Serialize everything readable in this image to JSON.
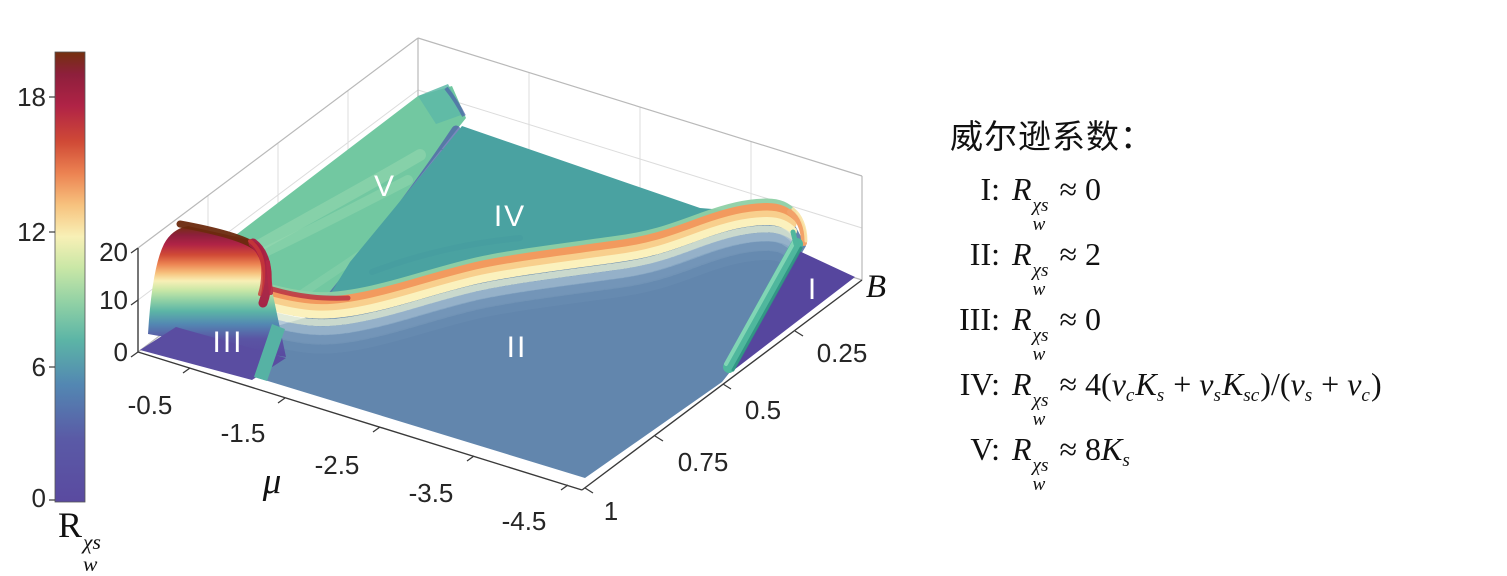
{
  "colorbar": {
    "tick_labels": [
      "18",
      "12",
      "6",
      "0"
    ],
    "label_segments": [
      {
        "t": "R",
        "sup": "χs",
        "sub": "w",
        "it": true
      }
    ]
  },
  "plot": {
    "x_axis": {
      "name": "μ",
      "tick_labels": [
        "-0.5",
        "-1.5",
        "-2.5",
        "-3.5",
        "-4.5"
      ]
    },
    "y_axis": {
      "name": "B",
      "tick_labels": [
        "0.25",
        "0.5",
        "0.75",
        "1"
      ]
    },
    "z_axis": {
      "tick_labels": [
        "0",
        "10",
        "20"
      ]
    },
    "regions": {
      "r1": "I",
      "r2": "II",
      "r3": "III",
      "r4": "IV",
      "r5": "V"
    }
  },
  "legend": {
    "title": "威尔逊系数：",
    "items": [
      {
        "numeral": "I:",
        "formula": [
          {
            "t": "R",
            "sup": "χs",
            "sub": "w",
            "it": true
          },
          {
            "t": " ≈ 0"
          }
        ]
      },
      {
        "numeral": "II:",
        "formula": [
          {
            "t": "R",
            "sup": "χs",
            "sub": "w",
            "it": true
          },
          {
            "t": " ≈ 2"
          }
        ]
      },
      {
        "numeral": "III:",
        "formula": [
          {
            "t": "R",
            "sup": "χs",
            "sub": "w",
            "it": true
          },
          {
            "t": " ≈ 0"
          }
        ]
      },
      {
        "numeral": "IV:",
        "formula": [
          {
            "t": "R",
            "sup": "χs",
            "sub": "w",
            "it": true
          },
          {
            "t": " ≈ 4("
          },
          {
            "t": "v",
            "sub": "c",
            "it": true
          },
          {
            "t": "K",
            "sub": "s",
            "it": true
          },
          {
            "t": " + "
          },
          {
            "t": "v",
            "sub": "s",
            "it": true
          },
          {
            "t": "K",
            "sub": "sc",
            "it": true
          },
          {
            "t": ")/("
          },
          {
            "t": "v",
            "sub": "s",
            "it": true
          },
          {
            "t": " + "
          },
          {
            "t": "v",
            "sub": "c",
            "it": true
          },
          {
            "t": ")"
          }
        ]
      },
      {
        "numeral": "V:",
        "formula": [
          {
            "t": "R",
            "sup": "χs",
            "sub": "w",
            "it": true
          },
          {
            "t": " ≈ 8"
          },
          {
            "t": "K",
            "sub": "s",
            "it": true
          }
        ]
      }
    ]
  },
  "chart_data": {
    "type": "surface",
    "title": "",
    "x_axis": {
      "label": "μ",
      "ticks": [
        -0.5,
        -1.5,
        -2.5,
        -3.5,
        -4.5
      ],
      "range": [
        -4.5,
        -0.5
      ]
    },
    "y_axis": {
      "label": "B",
      "ticks": [
        0.25,
        0.5,
        0.75,
        1
      ],
      "range": [
        0,
        1
      ]
    },
    "z_axis": {
      "label": "R_w^{χs}",
      "ticks": [
        0,
        10,
        20
      ],
      "range": [
        0,
        20
      ]
    },
    "colorbar": {
      "label": "R_w^{χs}",
      "ticks": [
        0,
        6,
        12,
        18
      ],
      "range": [
        0,
        20
      ],
      "colormap": "Spectral reversed: purple #5a4da1 → steel blue #6286ad → teal #4aa2a1 → mint #72c8a1 → pale green → cream #faf1bd → orange #f29a5e → red #d04a36 → crimson #a81e42 → dark brown #74300f"
    },
    "grid": true,
    "regions": [
      {
        "label": "I",
        "approx_value": 0,
        "color": "#56469e",
        "location": "μ ≈ -3.8 to -4.5, B ≈ 0 to 0.2 (right front corner)"
      },
      {
        "label": "II",
        "approx_value": 2,
        "color": "#6286ad",
        "location": "large plateau over most of the μ–B plane"
      },
      {
        "label": "III",
        "approx_value": 0,
        "color": "#5a4da1",
        "location": "μ ≈ -0.5 to -1.5, B ≈ 0.9 to 1 (front left corner)"
      },
      {
        "label": "IV",
        "approx_value": 4.5,
        "color": "#4aa2a1",
        "location": "μ ≈ -1.6 to -3.2, low B (back middle)"
      },
      {
        "label": "V",
        "approx_value": 8,
        "color": "#72c8a1",
        "location": "μ ≈ -0.5 to -1.6, low/mid B (back left)"
      }
    ],
    "features": [
      {
        "name": "tall wall ridge",
        "approx_height": 20,
        "location": "boundary of region III, μ ≈ -0.5…-1.5 at B ≈ 0.9"
      },
      {
        "name": "curved oscillating ridge",
        "approx_height": "12–16",
        "location": "boundary between regions IV/V and II"
      },
      {
        "name": "small teal ridge",
        "approx_height": 6,
        "location": "left boundary of region I"
      },
      {
        "name": "fringed step",
        "approx_height": "8 → 4.5",
        "location": "boundary between regions V and IV"
      }
    ]
  }
}
